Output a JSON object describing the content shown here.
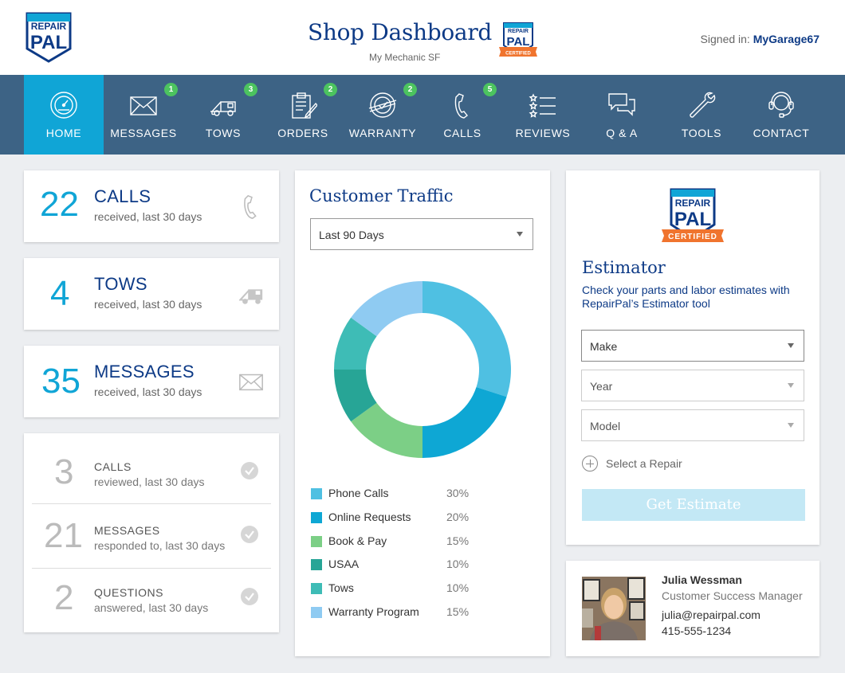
{
  "header": {
    "title": "Shop Dashboard",
    "subtitle": "My Mechanic SF",
    "signed_in_label": "Signed in:",
    "signed_in_user": "MyGarage67",
    "logo_text": [
      "REPAIR",
      "PAL"
    ],
    "certified_text": "CERTIFIED"
  },
  "nav": {
    "items": [
      {
        "label": "HOME",
        "icon": "speedometer-icon",
        "badge": null,
        "active": true
      },
      {
        "label": "MESSAGES",
        "icon": "envelope-icon",
        "badge": "1"
      },
      {
        "label": "TOWS",
        "icon": "tow-truck-icon",
        "badge": "3"
      },
      {
        "label": "ORDERS",
        "icon": "clipboard-icon",
        "badge": "2"
      },
      {
        "label": "WARRANTY",
        "icon": "warranty-seal-icon",
        "badge": "2"
      },
      {
        "label": "CALLS",
        "icon": "phone-icon",
        "badge": "5"
      },
      {
        "label": "REVIEWS",
        "icon": "star-list-icon",
        "badge": null
      },
      {
        "label": "Q & A",
        "icon": "chat-bubbles-icon",
        "badge": null
      },
      {
        "label": "TOOLS",
        "icon": "wrench-icon",
        "badge": null
      },
      {
        "label": "CONTACT",
        "icon": "headset-icon",
        "badge": null
      }
    ]
  },
  "stats": [
    {
      "value": "22",
      "title": "CALLS",
      "sub": "received, last 30 days",
      "icon": "phone-icon"
    },
    {
      "value": "4",
      "title": "TOWS",
      "sub": "received, last 30 days",
      "icon": "tow-truck-icon"
    },
    {
      "value": "35",
      "title": "MESSAGES",
      "sub": "received, last 30 days",
      "icon": "envelope-icon"
    }
  ],
  "reviewed": [
    {
      "value": "3",
      "title": "CALLS",
      "sub": "reviewed, last 30 days"
    },
    {
      "value": "21",
      "title": "MESSAGES",
      "sub": "responded to, last 30 days"
    },
    {
      "value": "2",
      "title": "QUESTIONS",
      "sub": "answered, last 30 days"
    }
  ],
  "traffic": {
    "title": "Customer Traffic",
    "range_selected": "Last 90 Days"
  },
  "chart_data": {
    "type": "pie",
    "variant": "donut",
    "title": "Customer Traffic",
    "series": [
      {
        "name": "Phone Calls",
        "value": 30,
        "label": "30%",
        "color": "#4fc0e2"
      },
      {
        "name": "Online Requests",
        "value": 20,
        "label": "20%",
        "color": "#0ea7d4"
      },
      {
        "name": "Book & Pay",
        "value": 15,
        "label": "15%",
        "color": "#7ccf86"
      },
      {
        "name": "USAA",
        "value": 10,
        "label": "10%",
        "color": "#27a596"
      },
      {
        "name": "Tows",
        "value": 10,
        "label": "10%",
        "color": "#3ebcb6"
      },
      {
        "name": "Warranty Program",
        "value": 15,
        "label": "15%",
        "color": "#8fcbf2"
      }
    ]
  },
  "estimator": {
    "title": "Estimator",
    "description": "Check your parts and labor estimates with RepairPal’s Estimator tool",
    "make": "Make",
    "year": "Year",
    "model": "Model",
    "add_repair": "Select a Repair",
    "button": "Get Estimate"
  },
  "contact": {
    "name": "Julia Wessman",
    "role": "Customer Success Manager",
    "email": "julia@repairpal.com",
    "phone": "415-555-1234"
  },
  "colors": {
    "brand_navy": "#0d3a86",
    "nav_bg": "#3d6385",
    "accent": "#10a5d6",
    "badge": "#4cc35f",
    "certified_orange": "#f0742e"
  }
}
